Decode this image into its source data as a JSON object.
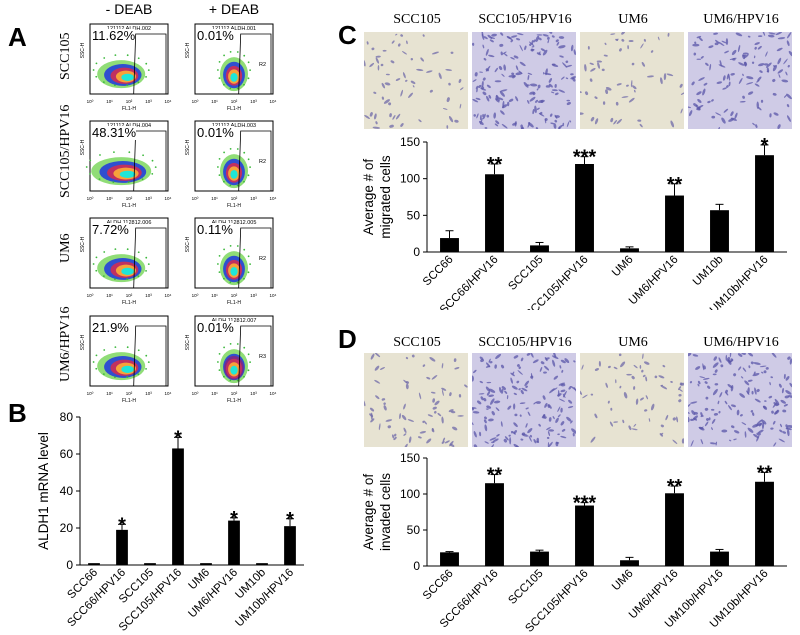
{
  "panels": {
    "A": "A",
    "B": "B",
    "C": "C",
    "D": "D"
  },
  "flow": {
    "columns": [
      "- DEAB",
      "+ DEAB"
    ],
    "rows": [
      {
        "label": "SCC105",
        "cells": [
          {
            "file": "121112 ALDH.002",
            "pct": "11.62%"
          },
          {
            "file": "121112 ALDH.001",
            "pct": "0.01%",
            "gate": "R2"
          }
        ]
      },
      {
        "label": "SCC105/HPV16",
        "cells": [
          {
            "file": "121112 ALDH.004",
            "pct": "48.31%"
          },
          {
            "file": "121112 ALDH.003",
            "pct": "0.01%",
            "gate": "R2"
          }
        ]
      },
      {
        "label": "UM6",
        "cells": [
          {
            "file": "ALDH 112812.006",
            "pct": "7.72%"
          },
          {
            "file": "ALDH 112812.005",
            "pct": "0.11%",
            "gate": "R2"
          }
        ]
      },
      {
        "label": "UM6/HPV16",
        "cells": [
          {
            "file": "",
            "pct": "21.9%"
          },
          {
            "file": "ALDH 112812.007",
            "pct": "0.01%",
            "gate": "R3"
          }
        ]
      }
    ],
    "axis_x": "FL1-H",
    "axis_y": "SSC-H",
    "ticks": [
      "10⁰",
      "10¹",
      "10²",
      "10³",
      "10⁴"
    ]
  },
  "micro_labels": {
    "C": [
      "SCC105",
      "SCC105/HPV16",
      "UM6",
      "UM6/HPV16"
    ],
    "D": [
      "SCC105",
      "SCC105/HPV16",
      "UM6",
      "UM6/HPV16"
    ]
  },
  "chart_data": [
    {
      "id": "B",
      "type": "bar",
      "ylabel": "ALDH1 mRNA level",
      "ylim": [
        0,
        80
      ],
      "yticks": [
        0,
        20,
        40,
        60,
        80
      ],
      "categories": [
        "SCC66",
        "SCC66/HPV16",
        "SCC105",
        "SCC105/HPV16",
        "UM6",
        "UM6/HPV16",
        "UM10b",
        "UM10b/HPV16"
      ],
      "values": [
        1,
        19,
        1,
        63,
        1,
        24,
        1,
        21
      ],
      "errors": [
        0,
        3,
        0,
        6,
        0,
        1.5,
        0,
        4
      ],
      "annotations": [
        "",
        "*",
        "",
        "*",
        "",
        "*",
        "",
        "*"
      ]
    },
    {
      "id": "C",
      "type": "bar",
      "ylabel": "Average # of migrated cells",
      "ylim": [
        0,
        150
      ],
      "yticks": [
        0,
        50,
        100,
        150
      ],
      "categories": [
        "SCC66",
        "SCC66/HPV16",
        "SCC105",
        "SCC105/HPV16",
        "UM6",
        "UM6/HPV16",
        "UM10b",
        "UM10b/HPV16"
      ],
      "values": [
        19,
        106,
        9,
        120,
        5,
        77,
        57,
        132
      ],
      "errors": [
        10,
        14,
        4,
        10,
        2,
        16,
        8,
        14
      ],
      "annotations": [
        "",
        "**",
        "",
        "***",
        "",
        "**",
        "",
        "*"
      ]
    },
    {
      "id": "D",
      "type": "bar",
      "ylabel": "Average # of invaded cells",
      "ylim": [
        0,
        150
      ],
      "yticks": [
        0,
        50,
        100,
        150
      ],
      "categories": [
        "SCC66",
        "SCC66/HPV16",
        "SCC105",
        "SCC105/HPV16",
        "UM6",
        "UM6/HPV16",
        "UM10b/HPV16",
        "UM10b/HPV16"
      ],
      "values": [
        19,
        115,
        20,
        84,
        8,
        101,
        20,
        117
      ],
      "errors": [
        1,
        12,
        2,
        4,
        4,
        10,
        3,
        13
      ],
      "annotations": [
        "",
        "**",
        "",
        "***",
        "",
        "**",
        "",
        "**"
      ]
    }
  ]
}
